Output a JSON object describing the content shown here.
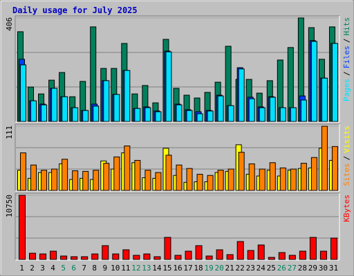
{
  "chart_data": [
    {
      "type": "bar",
      "title": "Daily usage for July 2025",
      "categories": [
        "1",
        "2",
        "3",
        "4",
        "5",
        "6",
        "7",
        "8",
        "9",
        "10",
        "11",
        "12",
        "13",
        "14",
        "15",
        "16",
        "17",
        "18",
        "19",
        "20",
        "21",
        "22",
        "23",
        "24",
        "25",
        "26",
        "27",
        "28",
        "29",
        "30",
        "31"
      ],
      "category_colors": [
        "#000000",
        "#000000",
        "#000000",
        "#000000",
        "#00805C",
        "#00805C",
        "#000000",
        "#000000",
        "#000000",
        "#000000",
        "#000000",
        "#00805C",
        "#00805C",
        "#000000",
        "#000000",
        "#000000",
        "#000000",
        "#000000",
        "#00805C",
        "#00805C",
        "#000000",
        "#000000",
        "#000000",
        "#000000",
        "#000000",
        "#00805C",
        "#00805C",
        "#000000",
        "#000000",
        "#000000",
        "#000000"
      ],
      "separator": "/",
      "ylim": [
        0,
        406
      ],
      "yticks": [
        406
      ],
      "series": [
        {
          "name": "Hits",
          "color": "#00805C",
          "values": [
            352,
            135,
            108,
            162,
            192,
            97,
            157,
            371,
            208,
            208,
            306,
            108,
            141,
            73,
            322,
            130,
            103,
            92,
            114,
            154,
            295,
            165,
            165,
            111,
            160,
            241,
            290,
            406,
            368,
            244,
            371
          ]
        },
        {
          "name": "Files",
          "color": "#0040FF",
          "values": [
            244,
            81,
            68,
            130,
            97,
            54,
            43,
            68,
            160,
            106,
            200,
            51,
            57,
            41,
            276,
            68,
            46,
            38,
            43,
            103,
            62,
            211,
            95,
            57,
            97,
            54,
            54,
            100,
            317,
            170,
            306
          ]
        },
        {
          "name": "Pages",
          "color": "#00E0FF",
          "values": [
            222,
            81,
            65,
            130,
            97,
            54,
            43,
            60,
            160,
            106,
            200,
            51,
            54,
            38,
            273,
            65,
            43,
            30,
            41,
            100,
            62,
            206,
            89,
            54,
            95,
            54,
            54,
            84,
            314,
            170,
            306
          ]
        }
      ]
    },
    {
      "type": "bar",
      "separator": "/",
      "ylim": [
        0,
        111
      ],
      "yticks": [
        111
      ],
      "series": [
        {
          "name": "Visits",
          "color": "#FFFF00",
          "values": [
            35,
            21,
            31,
            31,
            46,
            19,
            21,
            19,
            51,
            37,
            65,
            48,
            22,
            21,
            73,
            26,
            14,
            15,
            15,
            31,
            33,
            79,
            28,
            25,
            35,
            25,
            35,
            38,
            39,
            73,
            52
          ]
        },
        {
          "name": "Sites",
          "color": "#FF8000",
          "values": [
            65,
            44,
            35,
            37,
            54,
            34,
            33,
            35,
            47,
            58,
            77,
            52,
            35,
            31,
            61,
            44,
            38,
            28,
            26,
            35,
            37,
            66,
            46,
            37,
            48,
            39,
            37,
            47,
            57,
            111,
            76
          ]
        }
      ]
    },
    {
      "type": "bar",
      "ylim": [
        0,
        10750
      ],
      "yticks": [
        10750
      ],
      "series": [
        {
          "name": "KBytes",
          "color": "#FF0000",
          "values": [
            10750,
            1040,
            925,
            1387,
            578,
            462,
            462,
            925,
            2312,
            925,
            1618,
            694,
            925,
            462,
            3699,
            694,
            1387,
            2312,
            578,
            1618,
            809,
            3005,
            1503,
            2427,
            347,
            1156,
            694,
            1387,
            3699,
            1387,
            3583
          ]
        }
      ]
    }
  ]
}
